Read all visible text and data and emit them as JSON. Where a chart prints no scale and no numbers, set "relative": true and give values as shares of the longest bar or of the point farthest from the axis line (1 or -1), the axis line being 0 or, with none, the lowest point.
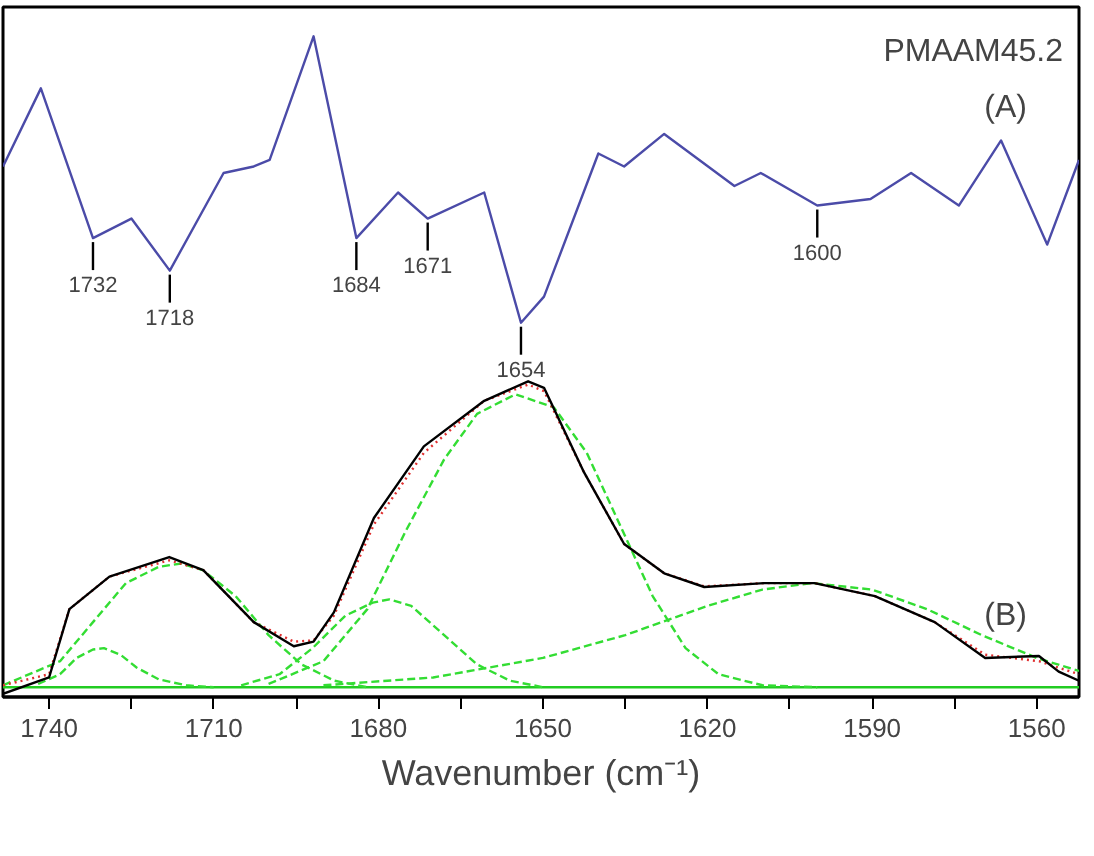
{
  "chart_data": {
    "type": "line",
    "relative": true,
    "xlabel": "Wavenumber (cm⁻¹)",
    "xlim": [
      1748.4,
      1552.3
    ],
    "xticks": [
      1740,
      {
        "value": 1725,
        "label": null
      },
      1710,
      {
        "value": 1695,
        "label": null
      },
      1680,
      {
        "value": 1665,
        "label": null
      },
      1650,
      {
        "value": 1635,
        "label": null
      },
      1620,
      {
        "value": 1605,
        "label": null
      },
      1590,
      {
        "value": 1575,
        "label": null
      },
      1560
    ],
    "grid": false,
    "marker": "none",
    "series": [
      {
        "color": "#4b4ba8",
        "line_style": "solid",
        "x": [
          1748.4,
          1741.5,
          1732,
          1725.0,
          1718,
          1708.2,
          1702.7,
          1699.8,
          1691.8,
          1684,
          1676.4,
          1671,
          1660.7,
          1654,
          1649.8,
          1639.9,
          1635.2,
          1627.9,
          1615.1,
          1610.3,
          1600,
          1590.3,
          1582.9,
          1574.2,
          1566.5,
          1558.1,
          1552.3
        ],
        "values": [
          0.8,
          0.92,
          0.69,
          0.72,
          0.64,
          0.79,
          0.8,
          0.81,
          1.0,
          0.69,
          0.76,
          0.72,
          0.76,
          0.56,
          0.6,
          0.82,
          0.8,
          0.85,
          0.77,
          0.79,
          0.74,
          0.75,
          0.79,
          0.74,
          0.84,
          0.68,
          0.81
        ]
      },
      {
        "color": "#22cc22",
        "line_style": "solid",
        "x": [
          1748.4,
          1552.3
        ],
        "values": [
          0,
          0
        ]
      },
      {
        "color": "#33dd33",
        "line_style": "dashed",
        "x": [
          1742,
          1738,
          1735,
          1732,
          1730,
          1727,
          1724,
          1720,
          1715,
          1710
        ],
        "values": [
          0.005,
          0.02,
          0.045,
          0.058,
          0.06,
          0.05,
          0.03,
          0.012,
          0.003,
          0
        ]
      },
      {
        "color": "#33dd33",
        "line_style": "dashed",
        "x": [
          1748.4,
          1738,
          1732,
          1726,
          1720,
          1716,
          1712,
          1706,
          1700,
          1694,
          1688,
          1682
        ],
        "values": [
          0.003,
          0.04,
          0.1,
          0.16,
          0.185,
          0.19,
          0.18,
          0.14,
          0.08,
          0.035,
          0.01,
          0
        ]
      },
      {
        "color": "#33dd33",
        "line_style": "dashed",
        "x": [
          1705,
          1698,
          1692,
          1686,
          1681,
          1678,
          1674,
          1668,
          1662,
          1656,
          1650
        ],
        "values": [
          0.003,
          0.02,
          0.06,
          0.11,
          0.13,
          0.135,
          0.125,
          0.08,
          0.035,
          0.01,
          0
        ]
      },
      {
        "color": "#33dd33",
        "line_style": "dashed",
        "x": [
          1700,
          1690,
          1682,
          1675,
          1668,
          1662,
          1655,
          1648,
          1642,
          1636,
          1630,
          1624,
          1618,
          1610,
          1600
        ],
        "values": [
          0.005,
          0.04,
          0.12,
          0.24,
          0.35,
          0.42,
          0.45,
          0.43,
          0.36,
          0.25,
          0.14,
          0.06,
          0.02,
          0.003,
          0
        ]
      },
      {
        "color": "#33dd33",
        "line_style": "dashed",
        "x": [
          1690,
          1670,
          1650,
          1635,
          1620,
          1610,
          1601,
          1590,
          1580,
          1570,
          1560,
          1552.3
        ],
        "values": [
          0.003,
          0.015,
          0.045,
          0.08,
          0.125,
          0.15,
          0.16,
          0.15,
          0.12,
          0.08,
          0.045,
          0.025
        ]
      },
      {
        "color": "#e03030",
        "line_style": "dotted",
        "x": [
          1748.4,
          1740,
          1736.3,
          1729.0,
          1718.1,
          1711.9,
          1702.7,
          1695.4,
          1691.8,
          1688.1,
          1680.8,
          1671.7,
          1660.7,
          1652.7,
          1649.8,
          1642.5,
          1635.2,
          1627.9,
          1620.6,
          1609.6,
          1600.5,
          1589.5,
          1578.6,
          1569.4,
          1559.6,
          1556.0,
          1552.3
        ],
        "values": [
          0.003,
          0.02,
          0.12,
          0.17,
          0.195,
          0.18,
          0.1,
          0.07,
          0.072,
          0.11,
          0.25,
          0.36,
          0.44,
          0.465,
          0.455,
          0.33,
          0.22,
          0.175,
          0.155,
          0.16,
          0.16,
          0.14,
          0.1,
          0.05,
          0.04,
          0.03,
          0.02
        ]
      },
      {
        "color": "#000000",
        "line_style": "solid",
        "x": [
          1748.4,
          1740,
          1736.3,
          1729.0,
          1718.1,
          1711.9,
          1702.7,
          1695.4,
          1691.8,
          1688.1,
          1680.8,
          1671.7,
          1660.7,
          1652.7,
          1649.8,
          1642.5,
          1635.2,
          1627.9,
          1620.6,
          1609.6,
          1600.5,
          1589.5,
          1578.6,
          1569.4,
          1559.6,
          1556.0,
          1552.3
        ],
        "values": [
          -0.01,
          0.015,
          0.12,
          0.17,
          0.2,
          0.18,
          0.1,
          0.063,
          0.07,
          0.115,
          0.26,
          0.37,
          0.44,
          0.47,
          0.46,
          0.33,
          0.22,
          0.175,
          0.154,
          0.16,
          0.16,
          0.14,
          0.1,
          0.045,
          0.048,
          0.024,
          0.01
        ]
      }
    ],
    "annotations": [
      "PMAAM45.2",
      "(A)",
      "(B)",
      {
        "text": "1732",
        "x": 1732,
        "y": 0.69
      },
      {
        "text": "1718",
        "x": 1718,
        "y": 0.64
      },
      {
        "text": "1684",
        "x": 1684,
        "y": 0.69
      },
      {
        "text": "1671",
        "x": 1671,
        "y": 0.72
      },
      {
        "text": "1654",
        "x": 1654,
        "y": 0.56
      },
      {
        "text": "1600",
        "x": 1600,
        "y": 0.74
      }
    ]
  }
}
